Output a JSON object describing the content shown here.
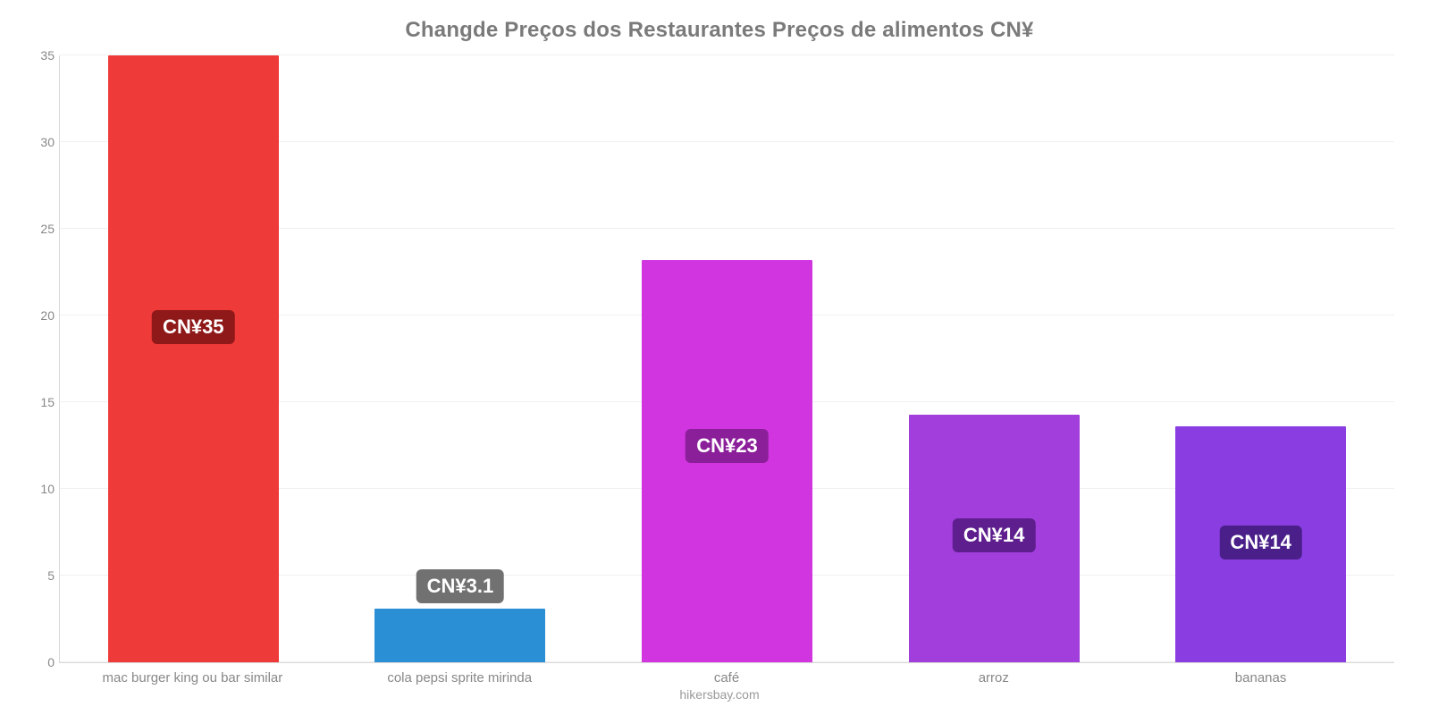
{
  "chart": {
    "type": "bar",
    "title": "Changde Preços dos Restaurantes Preços de alimentos CN¥",
    "title_color": "#7a7a7a",
    "title_fontsize": 24,
    "background_color": "#ffffff",
    "grid_color": "#f0f0f0",
    "axis_color": "#d9d9d9",
    "tick_label_color": "#888888",
    "ylim": [
      0,
      35
    ],
    "ytick_step": 5,
    "yticks": [
      0,
      5,
      10,
      15,
      20,
      25,
      30,
      35
    ],
    "bar_width_pct": 64,
    "value_label_fontsize": 22,
    "category_label_fontsize": 15,
    "categories": [
      "mac burger king ou bar similar",
      "cola pepsi sprite mirinda",
      "café",
      "arroz",
      "bananas"
    ],
    "values": [
      35,
      3.1,
      23.2,
      14.3,
      13.6
    ],
    "value_labels": [
      "CN¥35",
      "CN¥3.1",
      "CN¥23",
      "CN¥14",
      "CN¥14"
    ],
    "bar_colors": [
      "#ef3a3a",
      "#2b8fd6",
      "#d035e0",
      "#a23edb",
      "#8a3ee2"
    ],
    "badge_colors": [
      "#8f1818",
      "#717171",
      "#8b1f9a",
      "#5e1e8e",
      "#4a1f8a"
    ],
    "footer": "hikersbay.com",
    "footer_color": "#9a9a9a"
  }
}
